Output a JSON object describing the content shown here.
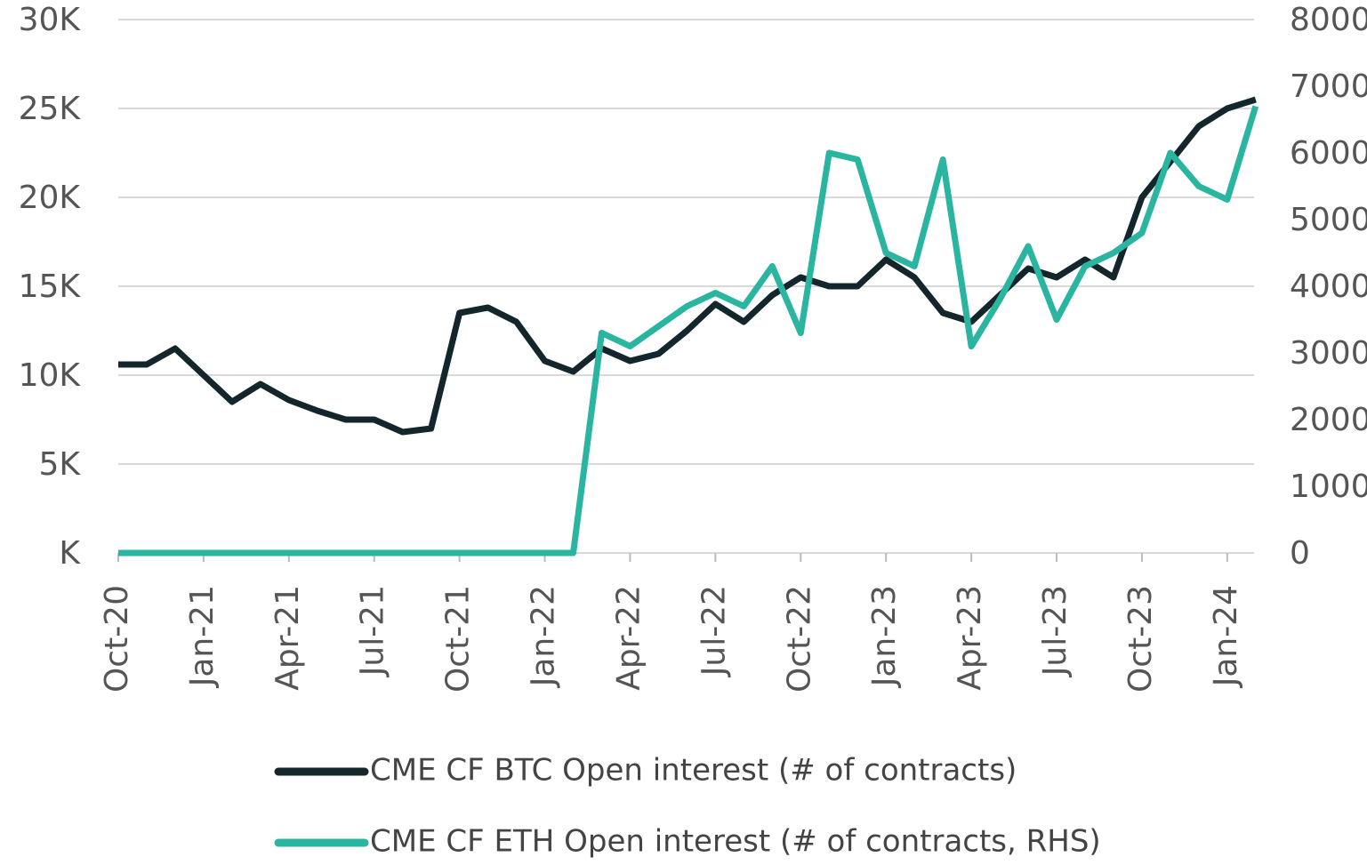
{
  "chart_data": {
    "type": "line",
    "categories": [
      "Oct-20",
      null,
      null,
      "Jan-21",
      null,
      null,
      "Apr-21",
      null,
      null,
      "Jul-21",
      null,
      null,
      "Oct-21",
      null,
      null,
      "Jan-22",
      null,
      null,
      "Apr-22",
      null,
      null,
      "Jul-22",
      null,
      null,
      "Oct-22",
      null,
      null,
      "Jan-23",
      null,
      null,
      "Apr-23",
      null,
      null,
      "Jul-23",
      null,
      null,
      "Oct-23",
      null,
      null,
      "Jan-24",
      null
    ],
    "series": [
      {
        "name": "CME CF BTC Open interest (# of contracts)",
        "color": "#13262b",
        "values": [
          10600,
          10600,
          11500,
          10000,
          8500,
          9500,
          8600,
          8000,
          7500,
          7500,
          6800,
          7000,
          13500,
          13800,
          13000,
          10800,
          10200,
          11500,
          10800,
          11200,
          12500,
          14000,
          13000,
          14500,
          15500,
          15000,
          15000,
          16500,
          15500,
          13500,
          13000,
          14500,
          16000,
          15500,
          16500,
          15500,
          20000,
          22000,
          24000,
          25000,
          25500
        ]
      },
      {
        "name": "CME CF ETH Open interest (# of contracts, RHS)",
        "color": "#2ab5a0",
        "axis": "y2",
        "values": [
          0,
          0,
          0,
          0,
          0,
          0,
          0,
          0,
          0,
          0,
          0,
          0,
          0,
          0,
          0,
          0,
          0,
          3300,
          3100,
          3400,
          3700,
          3900,
          3700,
          4300,
          3300,
          6000,
          5900,
          4500,
          4300,
          5900,
          3100,
          3800,
          4600,
          3500,
          4300,
          4500,
          4800,
          6000,
          5500,
          5300,
          6700
        ]
      }
    ],
    "ylim": [
      0,
      30000
    ],
    "yticks": [
      {
        "value": 0,
        "label": "K"
      },
      {
        "value": 5000,
        "label": "5K"
      },
      {
        "value": 10000,
        "label": "10K"
      },
      {
        "value": 15000,
        "label": "15K"
      },
      {
        "value": 20000,
        "label": "20K"
      },
      {
        "value": 25000,
        "label": "25K"
      },
      {
        "value": 30000,
        "label": "30K"
      }
    ],
    "y2lim": [
      0,
      8000
    ],
    "y2ticks": [
      0,
      1000,
      2000,
      3000,
      4000,
      5000,
      6000,
      7000,
      8000
    ],
    "grid": true
  }
}
